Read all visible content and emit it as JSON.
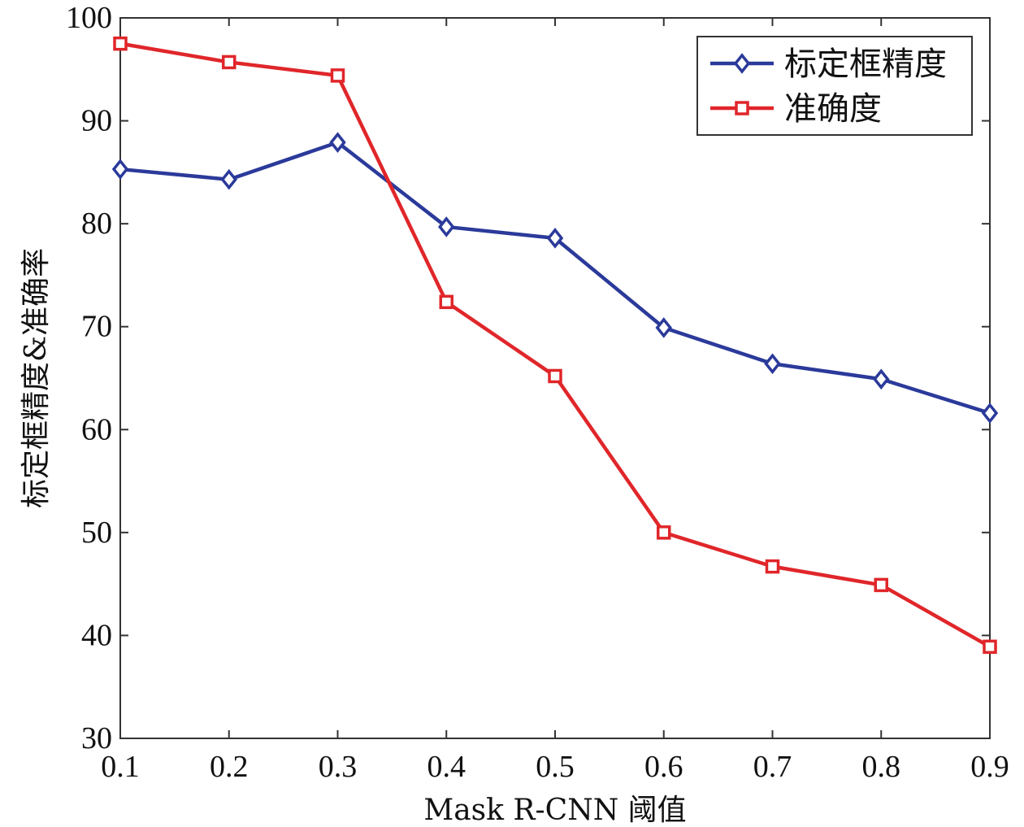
{
  "chart_data": {
    "type": "line",
    "title": "",
    "xlabel": "Mask R-CNN 阈值",
    "ylabel": "标定框精度&准确率",
    "x": [
      0.1,
      0.2,
      0.3,
      0.4,
      0.5,
      0.6,
      0.7,
      0.8,
      0.9
    ],
    "x_tick_labels": [
      "0.1",
      "0.2",
      "0.3",
      "0.4",
      "0.5",
      "0.6",
      "0.7",
      "0.8",
      "0.9"
    ],
    "y_tick_labels": [
      "30",
      "40",
      "50",
      "60",
      "70",
      "80",
      "90",
      "100"
    ],
    "xlim": [
      0.1,
      0.9
    ],
    "ylim": [
      30,
      100
    ],
    "grid": false,
    "legend_position": "top-right",
    "series": [
      {
        "name": "标定框精度",
        "color": "#2b3a9a",
        "marker": "diamond",
        "values": [
          85.3,
          84.3,
          87.9,
          79.7,
          78.6,
          69.9,
          66.4,
          64.9,
          61.6
        ]
      },
      {
        "name": "准确度",
        "color": "#e0262a",
        "marker": "square",
        "values": [
          97.5,
          95.7,
          94.4,
          72.4,
          65.2,
          50.0,
          46.7,
          44.9,
          38.9
        ]
      }
    ]
  }
}
